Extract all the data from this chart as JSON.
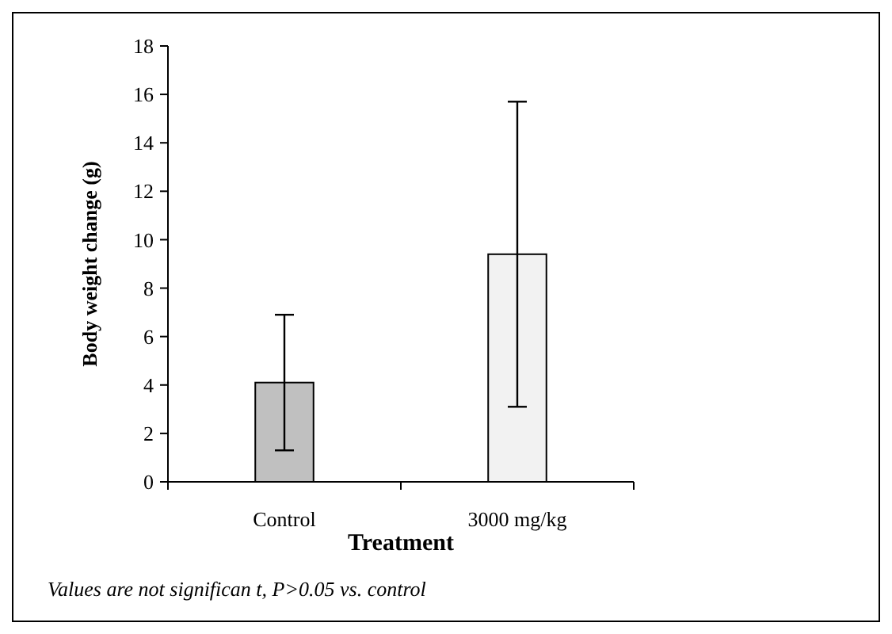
{
  "chart_data": {
    "type": "bar",
    "xlabel": "Treatment",
    "ylabel": "Body weight change (g)",
    "categories": [
      "Control",
      "3000 mg/kg"
    ],
    "values": [
      4.1,
      9.4
    ],
    "errors": [
      2.8,
      6.3
    ],
    "colors": [
      "#c0c0c0",
      "#f2f2f2"
    ],
    "ylim": [
      0,
      18
    ],
    "yticks": [
      0,
      2,
      4,
      6,
      8,
      10,
      12,
      14,
      16,
      18
    ],
    "annotations": [
      "Values are not significan t, P>0.05 vs. control"
    ]
  }
}
